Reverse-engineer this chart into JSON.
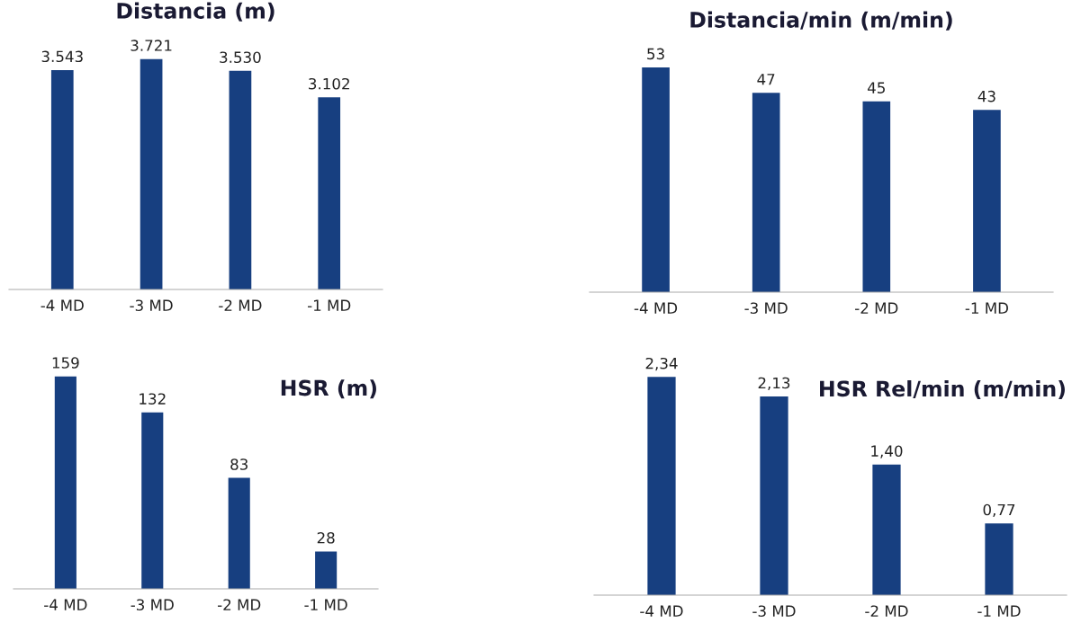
{
  "chart_data": [
    {
      "type": "bar",
      "title": "Distancia (m)",
      "categories": [
        "-4 MD",
        "-3 MD",
        "-2 MD",
        "-1 MD"
      ],
      "values": [
        3543,
        3721,
        3530,
        3102
      ],
      "value_labels": [
        "3.543",
        "3.721",
        "3.530",
        "3.102"
      ],
      "color": "#173f80",
      "tick_labels": "x",
      "grid": false
    },
    {
      "type": "bar",
      "title": "Distancia/min (m/min)",
      "categories": [
        "-4 MD",
        "-3 MD",
        "-2 MD",
        "-1 MD"
      ],
      "values": [
        53,
        47,
        45,
        43
      ],
      "value_labels": [
        "53",
        "47",
        "45",
        "43"
      ],
      "color": "#173f80",
      "tick_labels": "x",
      "grid": false
    },
    {
      "type": "bar",
      "title": "HSR (m)",
      "categories": [
        "-4 MD",
        "-3 MD",
        "-2 MD",
        "-1 MD"
      ],
      "values": [
        159,
        132,
        83,
        28
      ],
      "value_labels": [
        "159",
        "132",
        "83",
        "28"
      ],
      "color": "#173f80",
      "tick_labels": "x",
      "grid": false
    },
    {
      "type": "bar",
      "title": "HSR Rel/min (m/min)",
      "categories": [
        "-4 MD",
        "-3 MD",
        "-2 MD",
        "-1 MD"
      ],
      "values": [
        2.34,
        2.13,
        1.4,
        0.77
      ],
      "value_labels": [
        "2,34",
        "2,13",
        "1,40",
        "0,77"
      ],
      "color": "#173f80",
      "tick_labels": "x",
      "grid": false
    }
  ]
}
